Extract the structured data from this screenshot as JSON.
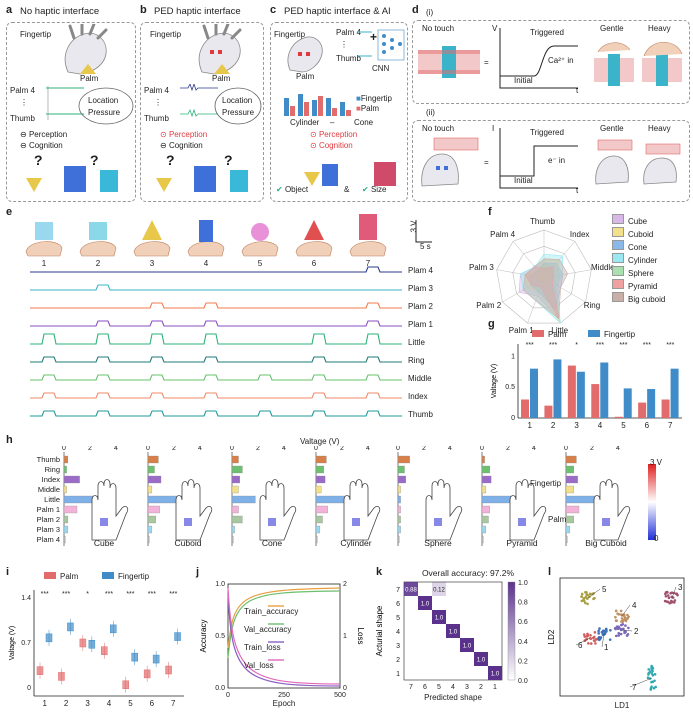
{
  "panel_labels": {
    "a": "a",
    "b": "b",
    "c": "c",
    "d": "d",
    "e": "e",
    "f": "f",
    "g": "g",
    "h": "h",
    "i": "i",
    "j": "j",
    "k": "k",
    "l": "l"
  },
  "panel_a": {
    "title": "No haptic interface",
    "fingertip": "Fingertip",
    "palm": "Palm",
    "palm4": "Palm 4",
    "dots": "⋮",
    "thumb": "Thumb",
    "location": "Location",
    "pressure": "Pressure",
    "perception": "Perception",
    "cognition": "Cognition",
    "q": "?"
  },
  "panel_b": {
    "title": "PED haptic interface",
    "fingertip": "Fingertip",
    "palm": "Palm",
    "palm4": "Palm 4",
    "dots": "⋮",
    "thumb": "Thumb",
    "location": "Location",
    "pressure": "Pressure",
    "perception": "Perception",
    "cognition": "Cognition",
    "q": "?"
  },
  "panel_c": {
    "title": "PED haptic interface & AI",
    "fingertip": "Fingertip",
    "palm": "Palm",
    "palm4": "Palm 4",
    "dots": "⋮",
    "thumb": "Thumb",
    "cnn": "CNN",
    "plus": "+",
    "cylinder": "Cylinder",
    "dash": "–",
    "cone": "Cone",
    "legend_fingertip": "Fingertip",
    "legend_palm": "Palm",
    "perception": "Perception",
    "cognition": "Cognition",
    "object": "Object",
    "amp": "&",
    "size": "Size"
  },
  "panel_d": {
    "i_label": "(i)",
    "ii_label": "(ii)",
    "i": {
      "no_touch": "No touch",
      "v": "V",
      "triggered": "Triggered",
      "ca_in": "Ca²⁺ in",
      "initial": "Initial",
      "t": "t",
      "gentle": "Gentle",
      "heavy": "Heavy"
    },
    "ii": {
      "no_touch": "No touch",
      "i": "I",
      "triggered": "Triggered",
      "e_in": "e⁻ in",
      "initial": "Initial",
      "t": "t",
      "gentle": "Gentle",
      "heavy": "Heavy"
    }
  },
  "panel_e": {
    "objects": [
      "1",
      "2",
      "3",
      "4",
      "5",
      "6",
      "7"
    ],
    "scale_v": "3 V",
    "scale_t": "5 s",
    "channels": [
      {
        "name": "Plam 4",
        "color": "#2b3a8c"
      },
      {
        "name": "Plam 3",
        "color": "#3bb3c9"
      },
      {
        "name": "Plam 2",
        "color": "#f07b4a"
      },
      {
        "name": "Plam 1",
        "color": "#8a4fc4"
      },
      {
        "name": "Little",
        "color": "#2bb37a"
      },
      {
        "name": "Ring",
        "color": "#1f7a78"
      },
      {
        "name": "Middle",
        "color": "#67c26a"
      },
      {
        "name": "Index",
        "color": "#f08a6a"
      },
      {
        "name": "Thumb",
        "color": "#1f9a9a"
      }
    ]
  },
  "panel_f": {
    "axes": [
      "Thumb",
      "Index",
      "Middle",
      "Ring",
      "Little",
      "Palm 1",
      "Palm 2",
      "Palm 3",
      "Palm 4"
    ],
    "legend": [
      {
        "name": "Cube",
        "color": "#d8b8e8"
      },
      {
        "name": "Cuboid",
        "color": "#f2e08a"
      },
      {
        "name": "Cone",
        "color": "#8ab8e8"
      },
      {
        "name": "Cylinder",
        "color": "#9ae8f2"
      },
      {
        "name": "Sphere",
        "color": "#a8e0b0"
      },
      {
        "name": "Pyramid",
        "color": "#f0a0a0"
      },
      {
        "name": "Big cuboid",
        "color": "#c8b0a8"
      }
    ]
  },
  "chart_data": [
    {
      "type": "bar",
      "panel": "g",
      "categories": [
        "1",
        "2",
        "3",
        "4",
        "5",
        "6",
        "7"
      ],
      "series": [
        {
          "name": "Palm",
          "color": "#e26b6b",
          "values": [
            0.3,
            0.2,
            0.85,
            0.55,
            0.02,
            0.25,
            0.3
          ]
        },
        {
          "name": "Fingertip",
          "color": "#3f8cc8",
          "values": [
            0.8,
            0.95,
            0.75,
            0.9,
            0.48,
            0.47,
            0.8
          ]
        }
      ],
      "significance": [
        "***",
        "***",
        "*",
        "***",
        "***",
        "***",
        "***"
      ],
      "ylabel": "Valtage (V)",
      "ylim": [
        0,
        1.2
      ],
      "yticks": [
        "0",
        "0.5",
        "1"
      ]
    },
    {
      "type": "bar",
      "panel": "h",
      "xlabel": "Valtage (V)",
      "xticks": [
        "0",
        "2",
        "4"
      ],
      "rows": [
        "Thumb",
        "Ring",
        "Index",
        "Middle",
        "Little",
        "Palm 1",
        "Plam 2",
        "Plam 3",
        "Plam 4"
      ],
      "row_colors": [
        "#d8804a",
        "#6cc070",
        "#9a6cc8",
        "#f2e08a",
        "#7fb0e8",
        "#f3b3d8",
        "#a8c8a0",
        "#9ad8f0",
        "#b8b8b8"
      ],
      "shapes": [
        {
          "name": "Cube",
          "values": [
            0.3,
            0.2,
            1.2,
            0.2,
            2.9,
            1.0,
            0.3,
            0.3,
            0.1
          ]
        },
        {
          "name": "Cuboid",
          "values": [
            0.8,
            0.5,
            1.0,
            0.3,
            3.3,
            0.9,
            0.6,
            0.3,
            0.1
          ]
        },
        {
          "name": "Cone",
          "values": [
            0.5,
            0.8,
            0.6,
            0.5,
            1.8,
            0.5,
            0.8,
            0.2,
            0.1
          ]
        },
        {
          "name": "Cylinder",
          "values": [
            0.8,
            0.6,
            0.7,
            0.4,
            3.5,
            0.9,
            0.5,
            0.3,
            0.1
          ]
        },
        {
          "name": "Sphere",
          "values": [
            0.9,
            0.5,
            0.6,
            0.2,
            0.2,
            0.2,
            0.2,
            0.2,
            0.1
          ]
        },
        {
          "name": "Pyramid",
          "values": [
            0.2,
            0.6,
            0.7,
            0.3,
            3.0,
            0.6,
            0.5,
            0.3,
            0.1
          ]
        },
        {
          "name": "Big Cuboid",
          "values": [
            0.8,
            0.6,
            0.9,
            0.6,
            3.0,
            1.0,
            0.6,
            0.3,
            0.1
          ]
        }
      ],
      "colorbar": {
        "max": "3 V",
        "min": "0"
      },
      "labels": {
        "fingertip": "Fingertip",
        "palm": "Palm"
      }
    },
    {
      "type": "box",
      "panel": "i",
      "categories": [
        "1",
        "2",
        "3",
        "4",
        "5",
        "6",
        "7"
      ],
      "series": [
        {
          "name": "Palm",
          "color": "#e26b6b",
          "values": [
            0.27,
            0.18,
            0.7,
            0.58,
            0.05,
            0.22,
            0.28
          ]
        },
        {
          "name": "Fingertip",
          "color": "#3f8cc8",
          "values": [
            0.78,
            0.95,
            0.68,
            0.92,
            0.48,
            0.45,
            0.8
          ]
        }
      ],
      "significance": [
        "***",
        "***",
        "*",
        "***",
        "***",
        "***",
        "***"
      ],
      "ylabel": "Valtage (V)",
      "yticks": [
        "0",
        "0.7",
        "1.4"
      ]
    },
    {
      "type": "line",
      "panel": "j",
      "xlabel": "Epoch",
      "ylabel": "Accuracy",
      "y2label": "Loss",
      "xticks": [
        "0",
        "250",
        "500"
      ],
      "yticks": [
        "0.0",
        "0.5",
        "1.0"
      ],
      "y2ticks": [
        "0",
        "1",
        "2"
      ],
      "series": [
        {
          "name": "Train_accuracy",
          "color": "#e8a040"
        },
        {
          "name": "Val_accuracy",
          "color": "#6cbf6c"
        },
        {
          "name": "Train_loss",
          "color": "#8a5fc4"
        },
        {
          "name": "Val_loss",
          "color": "#e068b8"
        }
      ]
    },
    {
      "type": "heatmap",
      "panel": "k",
      "title": "Overall accuracy: 97.2%",
      "xlabel": "Predicted shape",
      "ylabel": "Acturial shape",
      "labels": [
        "7",
        "6",
        "5",
        "4",
        "3",
        "2",
        "1"
      ],
      "cells": [
        [
          0.88,
          0,
          0.12,
          0,
          0,
          0,
          0
        ],
        [
          0,
          1.0,
          0,
          0,
          0,
          0,
          0
        ],
        [
          0,
          0,
          1.0,
          0,
          0,
          0,
          0
        ],
        [
          0,
          0,
          0,
          1.0,
          0,
          0,
          0
        ],
        [
          0,
          0,
          0,
          0,
          1.0,
          0,
          0
        ],
        [
          0,
          0,
          0,
          0,
          0,
          1.0,
          0
        ],
        [
          0,
          0,
          0,
          0,
          0,
          0,
          1.0
        ]
      ],
      "cell_text": [
        [
          "0.88",
          "",
          "0.12",
          "",
          "",
          "",
          ""
        ],
        [
          "",
          "1.0",
          "",
          "",
          "",
          "",
          ""
        ],
        [
          "",
          "",
          "1.0",
          "",
          "",
          "",
          ""
        ],
        [
          "",
          "",
          "",
          "1.0",
          "",
          "",
          ""
        ],
        [
          "",
          "",
          "",
          "",
          "1.0",
          "",
          ""
        ],
        [
          "",
          "",
          "",
          "",
          "",
          "1.0",
          ""
        ],
        [
          "",
          "",
          "",
          "",
          "",
          "",
          "1.0"
        ]
      ],
      "colorbar_ticks": [
        "1.0",
        "0.8",
        "0.6",
        "0.4",
        "0.2",
        "0.0"
      ]
    },
    {
      "type": "scatter",
      "panel": "l",
      "xlabel": "LD1",
      "ylabel": "LD2",
      "clusters": [
        {
          "label": "1",
          "color": "#3f6fb8"
        },
        {
          "label": "2",
          "color": "#7a68b8"
        },
        {
          "label": "3",
          "color": "#a0506e"
        },
        {
          "label": "4",
          "color": "#c09060"
        },
        {
          "label": "5",
          "color": "#a8a040"
        },
        {
          "label": "6",
          "color": "#d06060"
        },
        {
          "label": "7",
          "color": "#30a8b0"
        }
      ]
    }
  ]
}
